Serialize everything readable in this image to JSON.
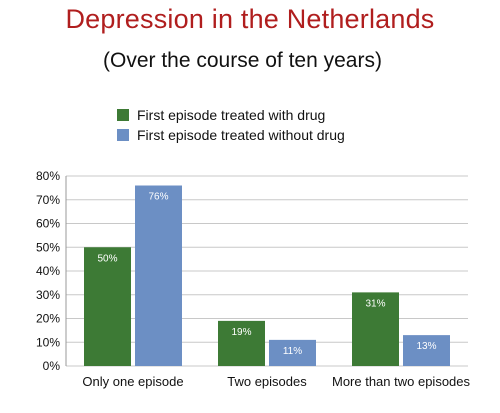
{
  "title": "Depression in the Netherlands",
  "subtitle": "(Over the course of ten years)",
  "colors": {
    "drug": "#3d7a35",
    "no_drug": "#6c8fc4",
    "grid": "#c8c8c8",
    "title": "#b01e1e"
  },
  "chart_data": {
    "type": "bar",
    "categories": [
      "Only one episode",
      "Two episodes",
      "More than two episodes"
    ],
    "series": [
      {
        "name": "First episode treated with drug",
        "values": [
          50,
          19,
          31
        ],
        "labels": [
          "50%",
          "19%",
          "31%"
        ]
      },
      {
        "name": "First episode treated without drug",
        "values": [
          76,
          11,
          13
        ],
        "labels": [
          "76%",
          "11%",
          "13%"
        ]
      }
    ],
    "ylim": [
      0,
      80
    ],
    "yticks": [
      "0%",
      "10%",
      "20%",
      "30%",
      "40%",
      "50%",
      "60%",
      "70%",
      "80%"
    ],
    "grid": true,
    "legend": "top-left"
  }
}
